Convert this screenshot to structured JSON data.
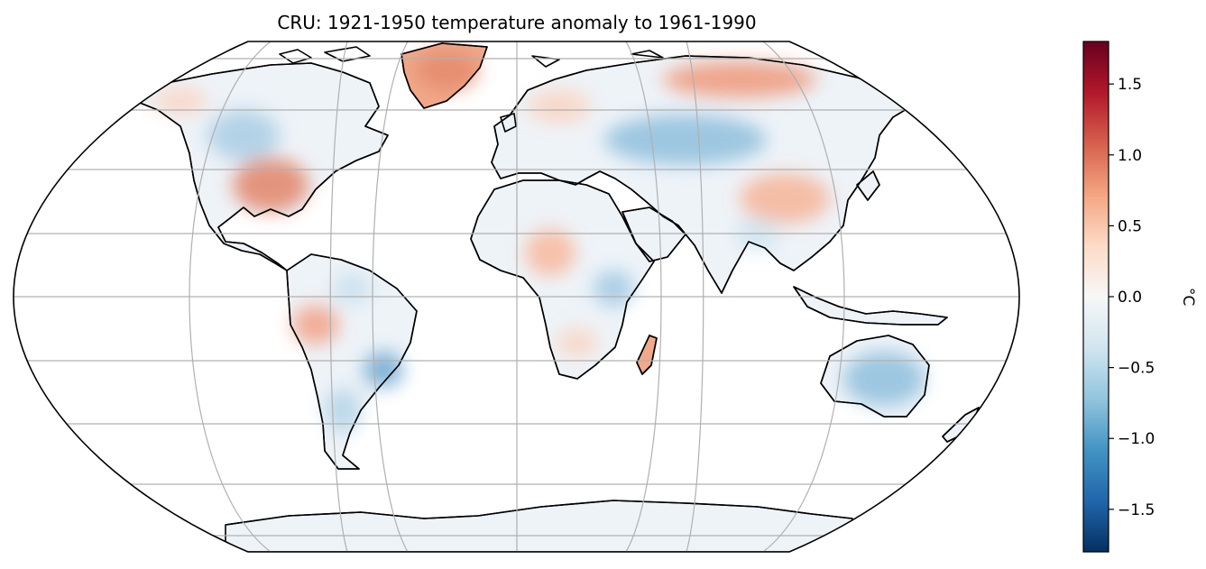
{
  "title": "CRU: 1921-1950 temperature anomaly to 1961-1990",
  "colorbar": {
    "unit_label": "°C",
    "range": [
      -1.8,
      1.8
    ],
    "ticks": [
      {
        "value": 1.5,
        "label": "1.5"
      },
      {
        "value": 1.0,
        "label": "1.0"
      },
      {
        "value": 0.5,
        "label": "0.5"
      },
      {
        "value": 0.0,
        "label": "0.0"
      },
      {
        "value": -0.5,
        "label": "−0.5"
      },
      {
        "value": -1.0,
        "label": "−1.0"
      },
      {
        "value": -1.5,
        "label": "−1.5"
      }
    ],
    "colors": [
      "#053061",
      "#2166ac",
      "#4393c3",
      "#92c5de",
      "#d1e5f0",
      "#f7f7f7",
      "#fddbc7",
      "#f4a582",
      "#d6604d",
      "#b2182b",
      "#67001f"
    ]
  },
  "map": {
    "projection": "Robinson",
    "gridlines": true,
    "gridline_color": "#b0b0b0",
    "coastline_color": "#000000"
  }
}
